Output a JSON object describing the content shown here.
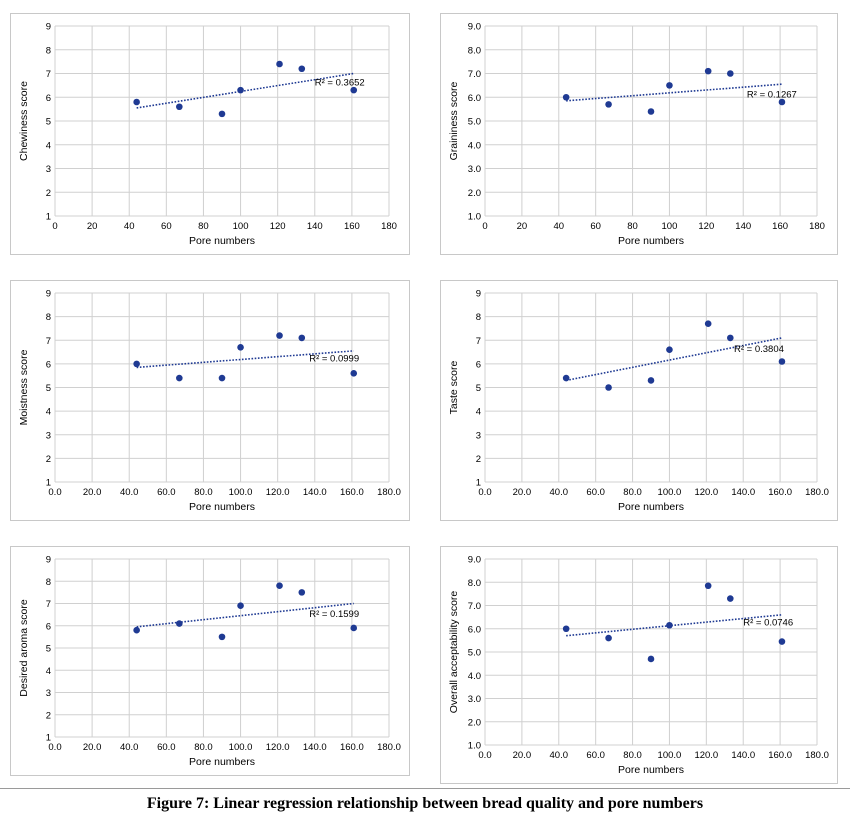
{
  "caption": "Figure 7: Linear regression relationship between bread quality and pore numbers",
  "colors": {
    "points": "#1f3a93",
    "trend": "#1f3a93",
    "grid": "#d0d0d0"
  },
  "chart_data": [
    {
      "type": "scatter",
      "xlabel": "Pore numbers",
      "ylabel": "Chewiness score",
      "xlim": [
        0,
        180
      ],
      "ylim": [
        1,
        9
      ],
      "xticks": [
        "0",
        "20",
        "40",
        "60",
        "80",
        "100",
        "120",
        "140",
        "160",
        "180"
      ],
      "yticks": [
        "1",
        "2",
        "3",
        "4",
        "5",
        "6",
        "7",
        "8",
        "9"
      ],
      "points": [
        [
          44,
          5.8
        ],
        [
          67,
          5.6
        ],
        [
          90,
          5.3
        ],
        [
          100,
          6.3
        ],
        [
          121,
          7.4
        ],
        [
          133,
          7.2
        ],
        [
          161,
          6.3
        ]
      ],
      "trendline": [
        [
          44,
          5.55
        ],
        [
          161,
          7.0
        ]
      ],
      "r2_label": "R² = 0.3652",
      "r2_at": [
        140,
        6.5
      ],
      "grid": true
    },
    {
      "type": "scatter",
      "xlabel": "Pore numbers",
      "ylabel": "Graininess score",
      "xlim": [
        0,
        180
      ],
      "ylim": [
        1,
        9
      ],
      "xticks": [
        "0",
        "20",
        "40",
        "60",
        "80",
        "100",
        "120",
        "140",
        "160",
        "180"
      ],
      "yticks": [
        "1.0",
        "2.0",
        "3.0",
        "4.0",
        "5.0",
        "6.0",
        "7.0",
        "8.0",
        "9.0"
      ],
      "points": [
        [
          44,
          6.0
        ],
        [
          67,
          5.7
        ],
        [
          90,
          5.4
        ],
        [
          100,
          6.5
        ],
        [
          121,
          7.1
        ],
        [
          133,
          7.0
        ],
        [
          161,
          5.8
        ]
      ],
      "trendline": [
        [
          44,
          5.85
        ],
        [
          161,
          6.55
        ]
      ],
      "r2_label": "R² = 0.1267",
      "r2_at": [
        142,
        6.0
      ],
      "grid": true
    },
    {
      "type": "scatter",
      "xlabel": "Pore numbers",
      "ylabel": "Moistness score",
      "xlim": [
        0,
        180
      ],
      "ylim": [
        1,
        9
      ],
      "xticks": [
        "0.0",
        "20.0",
        "40.0",
        "60.0",
        "80.0",
        "100.0",
        "120.0",
        "140.0",
        "160.0",
        "180.0"
      ],
      "yticks": [
        "1",
        "2",
        "3",
        "4",
        "5",
        "6",
        "7",
        "8",
        "9"
      ],
      "points": [
        [
          44,
          6.0
        ],
        [
          67,
          5.4
        ],
        [
          90,
          5.4
        ],
        [
          100,
          6.7
        ],
        [
          121,
          7.2
        ],
        [
          133,
          7.1
        ],
        [
          161,
          5.6
        ]
      ],
      "trendline": [
        [
          44,
          5.85
        ],
        [
          161,
          6.55
        ]
      ],
      "r2_label": "R² = 0.0999",
      "r2_at": [
        137,
        6.1
      ],
      "grid": true
    },
    {
      "type": "scatter",
      "xlabel": "Pore numbers",
      "ylabel": "Taste score",
      "xlim": [
        0,
        180
      ],
      "ylim": [
        1,
        9
      ],
      "xticks": [
        "0.0",
        "20.0",
        "40.0",
        "60.0",
        "80.0",
        "100.0",
        "120.0",
        "140.0",
        "160.0",
        "180.0"
      ],
      "yticks": [
        "1",
        "2",
        "3",
        "4",
        "5",
        "6",
        "7",
        "8",
        "9"
      ],
      "points": [
        [
          44,
          5.4
        ],
        [
          67,
          5.0
        ],
        [
          90,
          5.3
        ],
        [
          100,
          6.6
        ],
        [
          121,
          7.7
        ],
        [
          133,
          7.1
        ],
        [
          161,
          6.1
        ]
      ],
      "trendline": [
        [
          44,
          5.3
        ],
        [
          161,
          7.1
        ]
      ],
      "r2_label": "R² = 0.3804",
      "r2_at": [
        135,
        6.5
      ],
      "grid": true
    },
    {
      "type": "scatter",
      "xlabel": "Pore numbers",
      "ylabel": "Desired aroma score",
      "xlim": [
        0,
        180
      ],
      "ylim": [
        1,
        9
      ],
      "xticks": [
        "0.0",
        "20.0",
        "40.0",
        "60.0",
        "80.0",
        "100.0",
        "120.0",
        "140.0",
        "160.0",
        "180.0"
      ],
      "yticks": [
        "1",
        "2",
        "3",
        "4",
        "5",
        "6",
        "7",
        "8",
        "9"
      ],
      "points": [
        [
          44,
          5.8
        ],
        [
          67,
          6.1
        ],
        [
          90,
          5.5
        ],
        [
          100,
          6.9
        ],
        [
          121,
          7.8
        ],
        [
          133,
          7.5
        ],
        [
          161,
          5.9
        ]
      ],
      "trendline": [
        [
          44,
          5.95
        ],
        [
          161,
          7.0
        ]
      ],
      "r2_label": "R² = 0.1599",
      "r2_at": [
        137,
        6.4
      ],
      "grid": true
    },
    {
      "type": "scatter",
      "xlabel": "Pore numbers",
      "ylabel": "Overall acceptability score",
      "xlim": [
        0,
        180
      ],
      "ylim": [
        1,
        9
      ],
      "xticks": [
        "0.0",
        "20.0",
        "40.0",
        "60.0",
        "80.0",
        "100.0",
        "120.0",
        "140.0",
        "160.0",
        "180.0"
      ],
      "yticks": [
        "1.0",
        "2.0",
        "3.0",
        "4.0",
        "5.0",
        "6.0",
        "7.0",
        "8.0",
        "9.0"
      ],
      "points": [
        [
          44,
          6.0
        ],
        [
          67,
          5.6
        ],
        [
          90,
          4.7
        ],
        [
          100,
          6.15
        ],
        [
          121,
          7.85
        ],
        [
          133,
          7.3
        ],
        [
          161,
          5.45
        ]
      ],
      "trendline": [
        [
          44,
          5.7
        ],
        [
          161,
          6.6
        ]
      ],
      "r2_label": "R² = 0.0746",
      "r2_at": [
        140,
        6.15
      ],
      "grid": true
    }
  ]
}
